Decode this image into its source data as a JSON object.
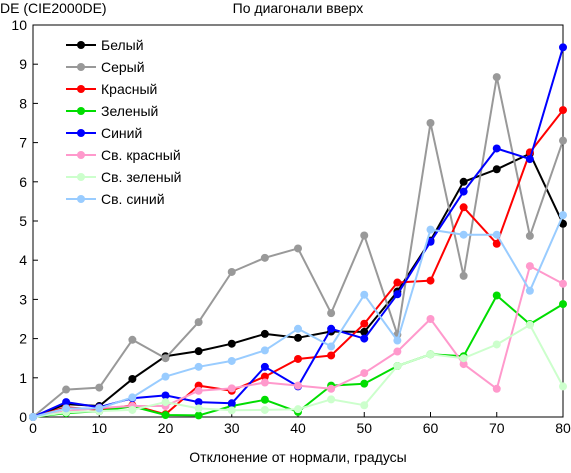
{
  "chart_data": {
    "type": "line",
    "title": "По диагонали вверх",
    "ylabel": "DE (CIE2000DE)",
    "xlabel": "Отклонение от нормали, градусы",
    "xlim": [
      0,
      80
    ],
    "ylim": [
      0,
      10
    ],
    "x_ticks": [
      "0",
      "10",
      "20",
      "30",
      "40",
      "50",
      "60",
      "70",
      "80"
    ],
    "y_ticks": [
      "0",
      "1",
      "2",
      "3",
      "4",
      "5",
      "6",
      "7",
      "8",
      "9",
      "10"
    ],
    "grid": false,
    "legend_position": "top-left",
    "x": [
      0,
      5,
      10,
      15,
      20,
      25,
      30,
      35,
      40,
      45,
      50,
      55,
      60,
      65,
      70,
      75,
      80
    ],
    "series": [
      {
        "name": "Белый",
        "color": "#000000",
        "values": [
          0,
          0.33,
          0.28,
          0.97,
          1.55,
          1.68,
          1.87,
          2.12,
          2.02,
          2.18,
          2.17,
          3.2,
          4.5,
          6.0,
          6.32,
          6.72,
          4.93
        ]
      },
      {
        "name": "Серый",
        "color": "#999999",
        "values": [
          0,
          0.7,
          0.75,
          1.97,
          1.5,
          2.42,
          3.7,
          4.06,
          4.3,
          2.65,
          4.63,
          2.1,
          7.5,
          3.6,
          8.67,
          4.62,
          7.05
        ]
      },
      {
        "name": "Красный",
        "color": "#ff0000",
        "values": [
          0,
          0.25,
          0.18,
          0.3,
          0.07,
          0.8,
          0.67,
          1.03,
          1.48,
          1.57,
          2.38,
          3.43,
          3.48,
          5.35,
          4.42,
          6.75,
          7.83
        ]
      },
      {
        "name": "Зеленый",
        "color": "#00dd00",
        "values": [
          0,
          0.1,
          0.15,
          0.27,
          0.05,
          0.04,
          0.28,
          0.44,
          0.13,
          0.8,
          0.85,
          1.3,
          1.6,
          1.55,
          3.1,
          2.37,
          2.88
        ]
      },
      {
        "name": "Синий",
        "color": "#0000ff",
        "values": [
          0,
          0.38,
          0.25,
          0.48,
          0.55,
          0.38,
          0.35,
          1.28,
          0.78,
          2.25,
          2.0,
          3.13,
          4.47,
          5.75,
          6.85,
          6.58,
          9.43
        ]
      },
      {
        "name": "Св. красный",
        "color": "#ff99cc",
        "values": [
          0,
          0.15,
          0.23,
          0.28,
          0.28,
          0.67,
          0.73,
          0.88,
          0.8,
          0.72,
          1.12,
          1.67,
          2.5,
          1.35,
          0.72,
          3.85,
          3.4
        ]
      },
      {
        "name": "Св. зеленый",
        "color": "#ccffcc",
        "values": [
          0,
          0.12,
          0.15,
          0.18,
          0.38,
          0.22,
          0.17,
          0.18,
          0.2,
          0.45,
          0.3,
          1.3,
          1.6,
          1.5,
          1.85,
          2.35,
          0.78
        ]
      },
      {
        "name": "Св. синий",
        "color": "#99ccff",
        "values": [
          0,
          0.22,
          0.22,
          0.5,
          1.03,
          1.28,
          1.43,
          1.7,
          2.25,
          1.8,
          3.12,
          1.95,
          4.78,
          4.65,
          4.65,
          3.22,
          5.15
        ]
      }
    ]
  }
}
